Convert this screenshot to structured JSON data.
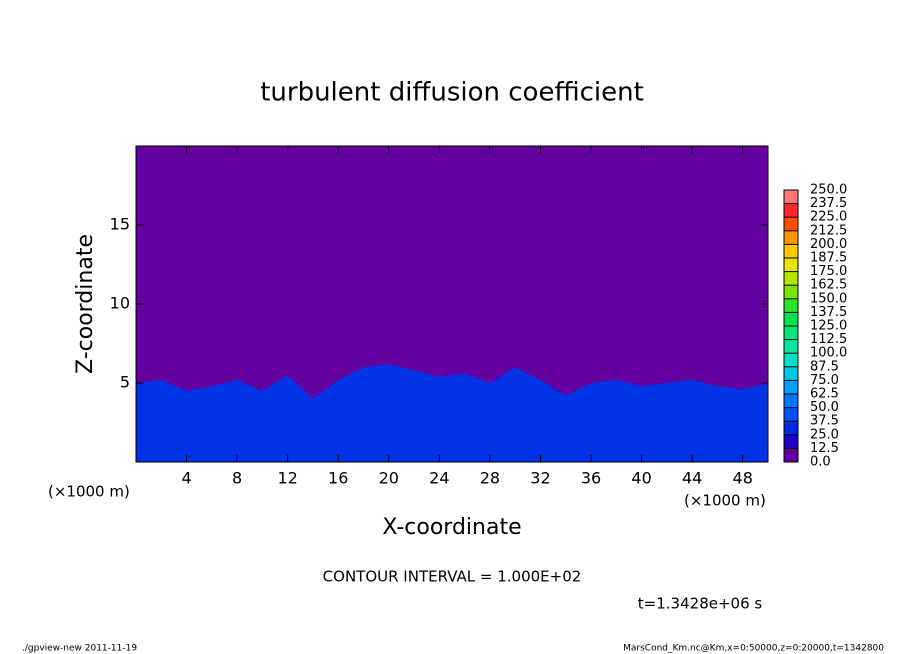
{
  "chart_data": {
    "type": "contour",
    "title": "turbulent diffusion coefficient",
    "xlabel": "X-coordinate",
    "ylabel": "Z-coordinate",
    "xunit": "(×1000 m)",
    "xunit_right": "(×1000 m)",
    "xlim": [
      0,
      50
    ],
    "ylim": [
      0,
      20
    ],
    "xticks": [
      4,
      8,
      12,
      16,
      20,
      24,
      28,
      32,
      36,
      40,
      44,
      48
    ],
    "yticks": [
      5,
      10,
      15
    ],
    "background_color": "#6400a0",
    "layer": {
      "color": "#0033e6",
      "x": [
        0,
        2,
        4,
        6,
        8,
        10,
        12,
        14,
        16,
        18,
        20,
        22,
        24,
        26,
        28,
        30,
        32,
        34,
        36,
        38,
        40,
        42,
        44,
        46,
        48,
        50
      ],
      "values": [
        5,
        5.2,
        4.5,
        4.8,
        5.2,
        4.5,
        5.5,
        4,
        5.2,
        6,
        6.2,
        5.8,
        5.4,
        5.6,
        5,
        6,
        5.2,
        4.2,
        5,
        5.2,
        4.8,
        5,
        5.2,
        4.8,
        4.6,
        5
      ]
    },
    "colorbar": {
      "ticks": [
        {
          "value": 0,
          "label": "0.0"
        },
        {
          "value": 12.5,
          "label": "12.5"
        },
        {
          "value": 25,
          "label": "25.0"
        },
        {
          "value": 37.5,
          "label": "37.5"
        },
        {
          "value": 50,
          "label": "50.0"
        },
        {
          "value": 62.5,
          "label": "62.5"
        },
        {
          "value": 75,
          "label": "75.0"
        },
        {
          "value": 87.5,
          "label": "87.5"
        },
        {
          "value": 100,
          "label": "100.0"
        },
        {
          "value": 112.5,
          "label": "112.5"
        },
        {
          "value": 125,
          "label": "125.0"
        },
        {
          "value": 137.5,
          "label": "137.5"
        },
        {
          "value": 150,
          "label": "150.0"
        },
        {
          "value": 162.5,
          "label": "162.5"
        },
        {
          "value": 175,
          "label": "175.0"
        },
        {
          "value": 187.5,
          "label": "187.5"
        },
        {
          "value": 200,
          "label": "200.0"
        },
        {
          "value": 212.5,
          "label": "212.5"
        },
        {
          "value": 225,
          "label": "225.0"
        },
        {
          "value": 237.5,
          "label": "237.5"
        },
        {
          "value": 250,
          "label": "250.0"
        }
      ],
      "colors": [
        "#6400a0",
        "#1e00c8",
        "#0028e0",
        "#0050ff",
        "#0078ff",
        "#00a0ff",
        "#00c8e0",
        "#00e0c8",
        "#00e6a0",
        "#00e678",
        "#00e650",
        "#28e628",
        "#78e600",
        "#b4e600",
        "#e6e600",
        "#ffc800",
        "#ff9600",
        "#ff5000",
        "#ff2828",
        "#ff7878"
      ]
    },
    "contour_interval": "CONTOUR INTERVAL = 1.000E+02",
    "time_label": "t=1.3428e+06 s",
    "footer_left": "./gpview-new  2011-11-19",
    "footer_right": "MarsCond_Km.nc@Km,x=0:50000,z=0:20000,t=1342800"
  }
}
